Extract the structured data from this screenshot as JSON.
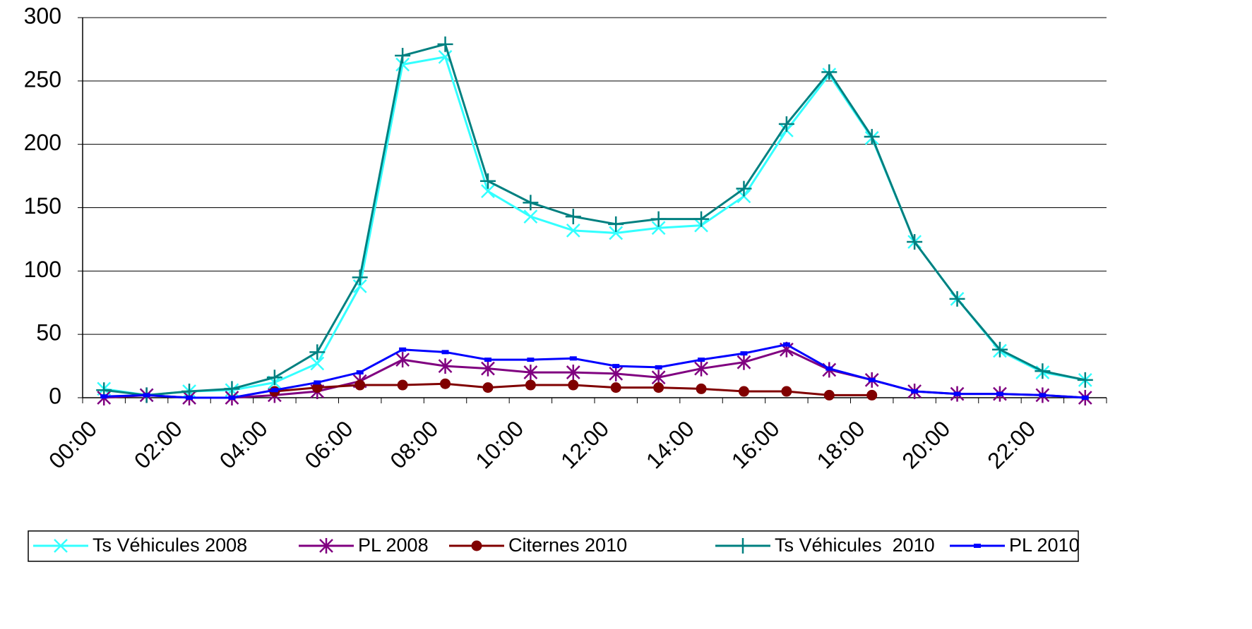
{
  "chart_data": {
    "type": "line",
    "categories": [
      "00:00",
      null,
      "02:00",
      null,
      "04:00",
      null,
      "06:00",
      null,
      "08:00",
      null,
      "10:00",
      null,
      "12:00",
      null,
      "14:00",
      null,
      "16:00",
      null,
      "18:00",
      null,
      "20:00",
      null,
      "22:00",
      null
    ],
    "series": [
      {
        "name": "Ts Véhicules 2008",
        "color": "#33ffff",
        "marker": "x",
        "values": [
          7,
          2,
          5,
          6,
          12,
          27,
          88,
          263,
          269,
          163,
          143,
          132,
          130,
          134,
          136,
          159,
          211,
          255,
          205,
          123,
          78,
          37,
          20,
          14
        ]
      },
      {
        "name": "PL 2008",
        "color": "#800080",
        "marker": "asterisk",
        "values": [
          0,
          2,
          0,
          0,
          2,
          5,
          13,
          30,
          25,
          23,
          20,
          20,
          19,
          16,
          23,
          28,
          38,
          22,
          14,
          5,
          3,
          3,
          2,
          0
        ]
      },
      {
        "name": "Citernes 2010",
        "color": "#800000",
        "marker": "circle",
        "values": [
          null,
          null,
          null,
          null,
          5,
          8,
          10,
          10,
          11,
          8,
          10,
          10,
          8,
          8,
          7,
          5,
          5,
          2,
          2,
          null,
          null,
          null,
          null,
          null
        ]
      },
      {
        "name": "Ts Véhicules  2010",
        "color": "#008080",
        "marker": "plus",
        "values": [
          6,
          2,
          5,
          7,
          16,
          36,
          95,
          270,
          279,
          171,
          154,
          143,
          137,
          141,
          141,
          165,
          216,
          257,
          206,
          123,
          78,
          38,
          21,
          14
        ]
      },
      {
        "name": "PL 2010",
        "color": "#0000ff",
        "marker": "dash",
        "values": [
          1,
          2,
          0,
          0,
          6,
          12,
          20,
          38,
          36,
          30,
          30,
          31,
          25,
          24,
          30,
          35,
          42,
          23,
          14,
          5,
          3,
          3,
          2,
          0
        ]
      }
    ],
    "ylim": [
      0,
      300
    ],
    "yticks": [
      0,
      50,
      100,
      150,
      200,
      250,
      300
    ],
    "grid": true,
    "legend": "bottom"
  }
}
